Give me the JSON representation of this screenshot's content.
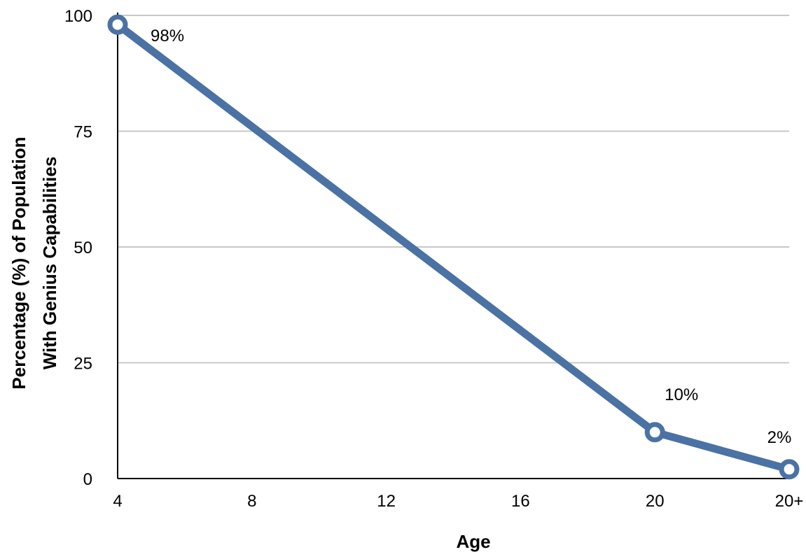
{
  "chart_data": {
    "type": "line",
    "categories": [
      "4",
      "8",
      "12",
      "16",
      "20",
      "20+"
    ],
    "values": [
      98,
      null,
      null,
      null,
      10,
      2
    ],
    "point_labels": [
      "98%",
      "",
      "",
      "",
      "10%",
      "2%"
    ],
    "xlabel": "Age",
    "ylabel_line1": "Percentage (%) of Population",
    "ylabel_line2": "With Genius Capabilities",
    "ylim": [
      0,
      100
    ],
    "yticks": [
      "0",
      "25",
      "50",
      "75",
      "100"
    ],
    "grid": true,
    "line_color": "#4a72a4"
  }
}
